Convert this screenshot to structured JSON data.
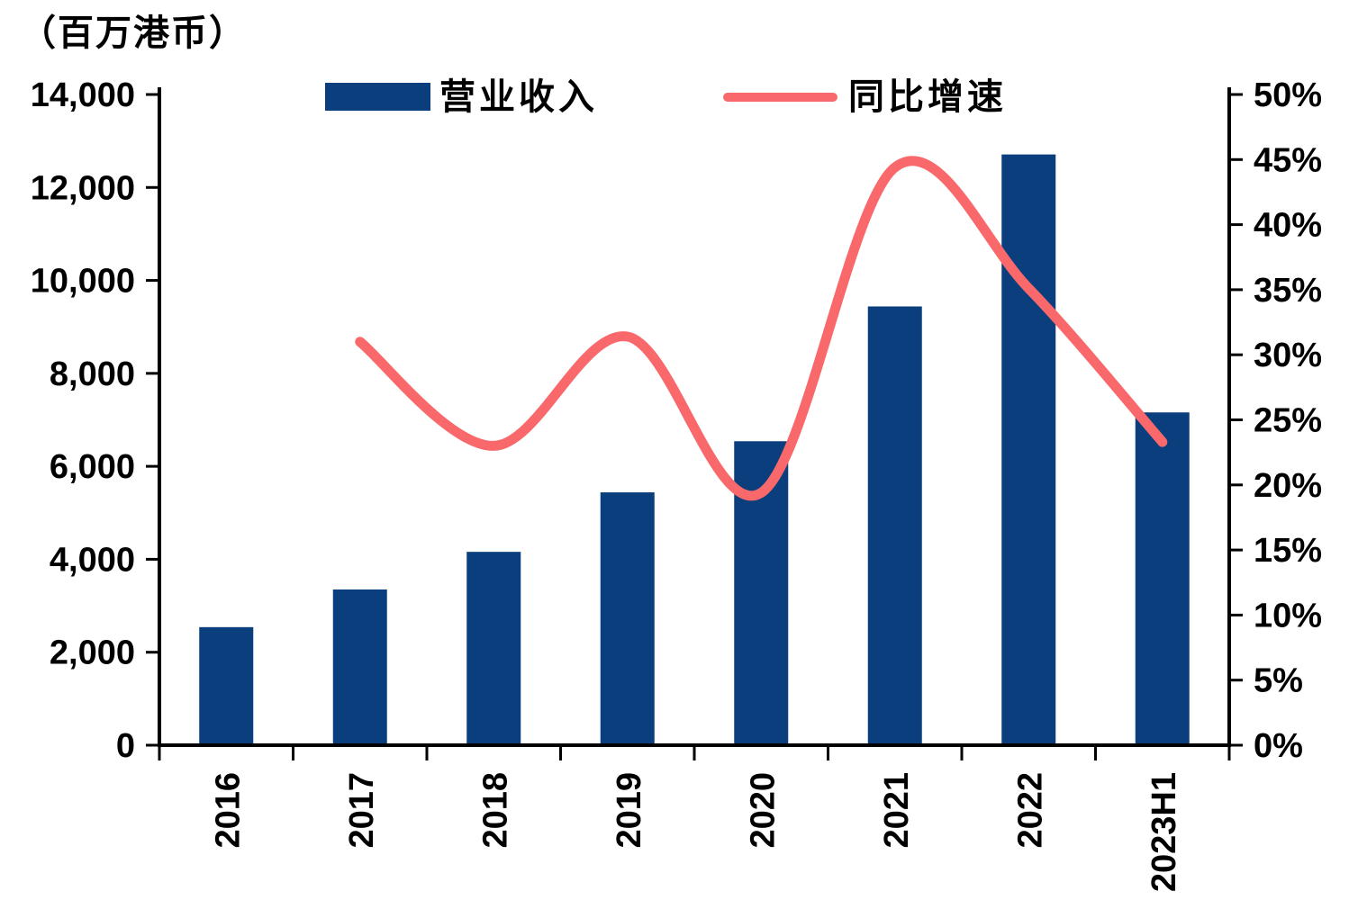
{
  "unit_label": "（百万港币）",
  "legend": [
    {
      "label": "营业收入",
      "type": "bar",
      "color": "#0A3E7C"
    },
    {
      "label": "同比增速",
      "type": "line",
      "color": "#F9696C"
    }
  ],
  "chart_data": {
    "type": "bar+line combo",
    "categories": [
      "2016",
      "2017",
      "2018",
      "2019",
      "2020",
      "2021",
      "2022",
      "2023H1"
    ],
    "series": [
      {
        "name": "营业收入",
        "type": "bar",
        "axis": "left",
        "unit": "百万港币",
        "color": "#0A3E7C",
        "values": [
          2540,
          3350,
          4160,
          5440,
          6540,
          9440,
          12710,
          7160
        ]
      },
      {
        "name": "同比增速",
        "type": "line",
        "axis": "right",
        "unit": "%",
        "color": "#F9696C",
        "values": [
          null,
          31.0,
          23.0,
          31.4,
          19.4,
          44.4,
          35.1,
          23.3
        ]
      }
    ],
    "left_axis": {
      "min": 0,
      "max": 14000,
      "step": 2000,
      "tick_labels": [
        "0",
        "2,000",
        "4,000",
        "6,000",
        "8,000",
        "10,000",
        "12,000",
        "14,000"
      ]
    },
    "right_axis": {
      "min": 0,
      "max": 50,
      "step": 5,
      "tick_labels": [
        "0%",
        "5%",
        "10%",
        "15%",
        "20%",
        "25%",
        "30%",
        "35%",
        "40%",
        "45%",
        "50%"
      ]
    },
    "grid": false,
    "legend_position": "top-center",
    "axis_color": "#000000"
  }
}
